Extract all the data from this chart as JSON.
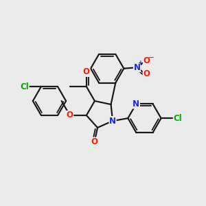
{
  "bg_color": "#ebebeb",
  "bond_color": "#1a1a1a",
  "bond_width": 1.6,
  "atom_colors": {
    "O": "#ff1a00",
    "N": "#2222dd",
    "Cl": "#00aa00"
  },
  "font_size": 8.5
}
